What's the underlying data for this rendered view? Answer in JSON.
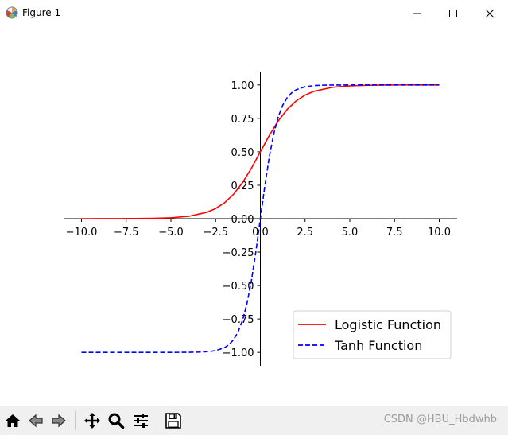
{
  "window": {
    "title": "Figure 1"
  },
  "toolbar": {
    "buttons": [
      "home",
      "back",
      "forward",
      "pan",
      "zoom",
      "configure-subplots",
      "save"
    ],
    "watermark": "CSDN @HBU_Hbdwhb"
  },
  "chart_data": {
    "type": "line",
    "title": "",
    "xlabel": "",
    "ylabel": "",
    "xlim": [
      -11.0,
      11.0
    ],
    "ylim": [
      -1.1,
      1.1
    ],
    "x_ticks": [
      "−10.0",
      "−7.5",
      "−5.0",
      "−2.5",
      "0.0",
      "2.5",
      "5.0",
      "7.5",
      "10.0"
    ],
    "y_ticks": [
      "1.00",
      "0.75",
      "0.50",
      "0.25",
      "0.00",
      "−0.25",
      "−0.50",
      "−0.75",
      "−1.00"
    ],
    "grid": false,
    "spines": "centered-at-origin",
    "legend_position": "lower-right",
    "series": [
      {
        "name": "Logistic Function",
        "color": "#ff0000",
        "style": "solid",
        "x": [
          -10,
          -9,
          -8,
          -7,
          -6,
          -5,
          -4,
          -3,
          -2.5,
          -2,
          -1.5,
          -1,
          -0.5,
          0,
          0.5,
          1,
          1.5,
          2,
          2.5,
          3,
          4,
          5,
          6,
          7,
          8,
          9,
          10
        ],
        "y": [
          0.0,
          0.0001,
          0.0003,
          0.0009,
          0.0025,
          0.0067,
          0.018,
          0.0474,
          0.0759,
          0.1192,
          0.1824,
          0.2689,
          0.3775,
          0.5,
          0.6225,
          0.7311,
          0.8176,
          0.8808,
          0.9241,
          0.9526,
          0.982,
          0.9933,
          0.9975,
          0.9991,
          0.9997,
          0.9999,
          1.0
        ]
      },
      {
        "name": "Tanh Function",
        "color": "#0000ff",
        "style": "dashed",
        "x": [
          -10,
          -8,
          -6,
          -5,
          -4,
          -3.5,
          -3,
          -2.5,
          -2,
          -1.75,
          -1.5,
          -1.25,
          -1,
          -0.75,
          -0.5,
          -0.25,
          0,
          0.25,
          0.5,
          0.75,
          1,
          1.25,
          1.5,
          1.75,
          2,
          2.5,
          3,
          3.5,
          4,
          5,
          6,
          8,
          10
        ],
        "y": [
          -1.0,
          -1.0,
          -1.0,
          -0.9999,
          -0.9993,
          -0.9982,
          -0.9951,
          -0.9866,
          -0.964,
          -0.9414,
          -0.9051,
          -0.8483,
          -0.7616,
          -0.6351,
          -0.4621,
          -0.2449,
          0.0,
          0.2449,
          0.4621,
          0.6351,
          0.7616,
          0.8483,
          0.9051,
          0.9414,
          0.964,
          0.9866,
          0.9951,
          0.9982,
          0.9993,
          0.9999,
          1.0,
          1.0,
          1.0
        ]
      }
    ]
  }
}
